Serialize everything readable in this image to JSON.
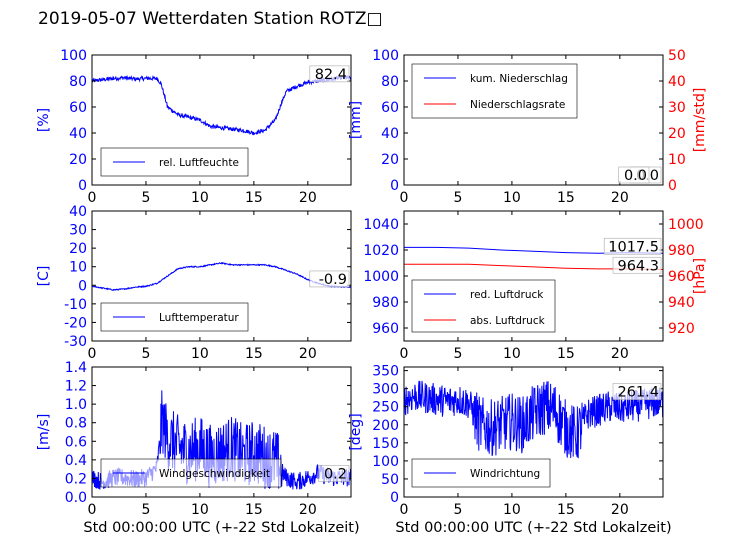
{
  "title": "2019-05-07 Wetterdaten Station ROTZ□",
  "colors": {
    "blue": "#0000ff",
    "red": "#ff0000",
    "black": "#000000"
  },
  "chart_data": [
    {
      "id": "humidity",
      "type": "line",
      "ylabel": "[%]",
      "xlim": [
        0,
        24
      ],
      "ylim": [
        0,
        100
      ],
      "xticks": [
        0,
        5,
        10,
        15,
        20
      ],
      "yticks": [
        0,
        20,
        40,
        60,
        80,
        100
      ],
      "legend": "bottom-left",
      "current_value": "82.4",
      "series": [
        {
          "name": "rel. Luftfeuchte",
          "color": "#0000ff",
          "noise": 1.5,
          "x": [
            0,
            1,
            2,
            3,
            4,
            5,
            6,
            6.4,
            7,
            8,
            9,
            10,
            11,
            12,
            13,
            14,
            15,
            16,
            17,
            17.5,
            18,
            19,
            20,
            21,
            22,
            23,
            24
          ],
          "y": [
            80,
            81,
            82,
            82.5,
            81.5,
            82,
            82,
            78,
            60,
            54,
            52,
            50,
            45,
            44,
            43,
            42,
            40,
            42,
            50,
            62,
            72,
            76,
            79,
            80,
            81,
            82.4,
            82.4
          ]
        }
      ]
    },
    {
      "id": "precipitation",
      "type": "line",
      "ylabel": "[mm]",
      "ylabel_right": "[mm/std]",
      "xlim": [
        0,
        24
      ],
      "ylim": [
        0,
        100
      ],
      "ylim_right": [
        0,
        50
      ],
      "xticks": [
        0,
        5,
        10,
        15,
        20
      ],
      "yticks": [
        0,
        20,
        40,
        60,
        80,
        100
      ],
      "yticks_right": [
        0,
        10,
        20,
        30,
        40,
        50
      ],
      "legend": "top-left",
      "current_value": "0.0",
      "current_value_right": "0.0",
      "series": [
        {
          "name": "kum. Niederschlag",
          "color": "#0000ff",
          "noise": 0,
          "x": [
            0,
            24
          ],
          "y": [
            0,
            0
          ]
        },
        {
          "name": "Niederschlagsrate",
          "color": "#ff0000",
          "noise": 0,
          "x": [
            0,
            24
          ],
          "y": [
            0,
            0
          ]
        }
      ]
    },
    {
      "id": "temperature",
      "type": "line",
      "ylabel": "[C]",
      "xlim": [
        0,
        24
      ],
      "ylim": [
        -30,
        40
      ],
      "xticks": [
        0,
        5,
        10,
        15,
        20
      ],
      "yticks": [
        -30,
        -20,
        -10,
        0,
        10,
        20,
        30,
        40
      ],
      "legend": "bottom-left",
      "current_value": "-0.9",
      "series": [
        {
          "name": "Lufttemperatur",
          "color": "#0000ff",
          "noise": 0.3,
          "x": [
            0,
            1,
            2,
            3,
            4,
            5,
            6,
            7,
            8,
            9,
            10,
            11,
            12,
            13,
            14,
            15,
            16,
            17,
            18,
            19,
            20,
            21,
            22,
            23,
            24
          ],
          "y": [
            -0.5,
            -1.5,
            -2.5,
            -2,
            -1,
            -0.5,
            1,
            5,
            9,
            10,
            10,
            11,
            12,
            11,
            11,
            11,
            11,
            10,
            8,
            6,
            3,
            1,
            -0.5,
            -0.8,
            -0.9
          ]
        }
      ]
    },
    {
      "id": "pressure",
      "type": "line",
      "ylabel": "",
      "ylabel_right": "[hPa]",
      "xlim": [
        0,
        24
      ],
      "ylim": [
        950,
        1050
      ],
      "ylim_right": [
        910,
        1010
      ],
      "xticks": [
        0,
        5,
        10,
        15,
        20
      ],
      "yticks": [
        960,
        980,
        1000,
        1020,
        1040
      ],
      "yticks_right": [
        920,
        940,
        960,
        980,
        1000
      ],
      "legend": "bottom-left",
      "current_value": "1017.5",
      "current_value_right": "964.3",
      "series": [
        {
          "name": "red. Luftdruck",
          "color": "#0000ff",
          "noise": 0,
          "x": [
            0,
            3,
            6,
            9,
            12,
            15,
            18,
            21,
            24
          ],
          "y": [
            1022,
            1022,
            1021.5,
            1020,
            1019,
            1018,
            1017.5,
            1018,
            1017.5
          ]
        },
        {
          "name": "abs. Luftdruck",
          "color": "#ff0000",
          "noise": 0,
          "x": [
            0,
            3,
            6,
            9,
            12,
            15,
            18,
            21,
            24
          ],
          "y": [
            1009,
            1009,
            1009,
            1008,
            1007,
            1006,
            1005.5,
            1005.5,
            1005
          ]
        }
      ]
    },
    {
      "id": "wind-speed",
      "type": "line",
      "ylabel": "[m/s]",
      "xlabel": "Std 00:00:00 UTC (+-22 Std Lokalzeit)",
      "xlim": [
        0,
        24
      ],
      "ylim": [
        0,
        1.4
      ],
      "xticks": [
        0,
        5,
        10,
        15,
        20
      ],
      "yticks": [
        0.0,
        0.2,
        0.4,
        0.6,
        0.8,
        1.0,
        1.2,
        1.4
      ],
      "legend": "bottom-left",
      "current_value": "0.2",
      "series": [
        {
          "name": "Windgeschwindigkeit",
          "color": "#0000ff",
          "noise": 0.22,
          "x": [
            0,
            1,
            2,
            3,
            4,
            5,
            6,
            6.5,
            7,
            8,
            9,
            10,
            11,
            12,
            13,
            14,
            15,
            16,
            17,
            18,
            19,
            20,
            21,
            22,
            23,
            24
          ],
          "y": [
            0.2,
            0.15,
            0.2,
            0.2,
            0.18,
            0.2,
            0.3,
            0.8,
            0.6,
            0.5,
            0.45,
            0.5,
            0.4,
            0.45,
            0.5,
            0.4,
            0.45,
            0.4,
            0.35,
            0.2,
            0.15,
            0.2,
            0.25,
            0.2,
            0.2,
            0.2
          ]
        }
      ]
    },
    {
      "id": "wind-direction",
      "type": "line",
      "ylabel": "[deg]",
      "xlabel": "Std 00:00:00 UTC (+-22 Std Lokalzeit)",
      "xlim": [
        0,
        24
      ],
      "ylim": [
        0,
        360
      ],
      "xticks": [
        0,
        5,
        10,
        15,
        20
      ],
      "yticks": [
        0,
        50,
        100,
        150,
        200,
        250,
        300,
        350
      ],
      "legend": "bottom-left",
      "current_value": "261.4",
      "series": [
        {
          "name": "Windrichtung",
          "color": "#0000ff",
          "noise": 50,
          "x": [
            0,
            1,
            2,
            3,
            4,
            5,
            6,
            7,
            8,
            9,
            10,
            11,
            12,
            13,
            14,
            15,
            16,
            17,
            18,
            19,
            20,
            21,
            22,
            23,
            24
          ],
          "y": [
            270,
            280,
            275,
            270,
            265,
            270,
            260,
            200,
            190,
            200,
            210,
            200,
            230,
            250,
            240,
            190,
            170,
            230,
            240,
            250,
            245,
            250,
            255,
            260,
            261.4
          ]
        }
      ]
    }
  ]
}
